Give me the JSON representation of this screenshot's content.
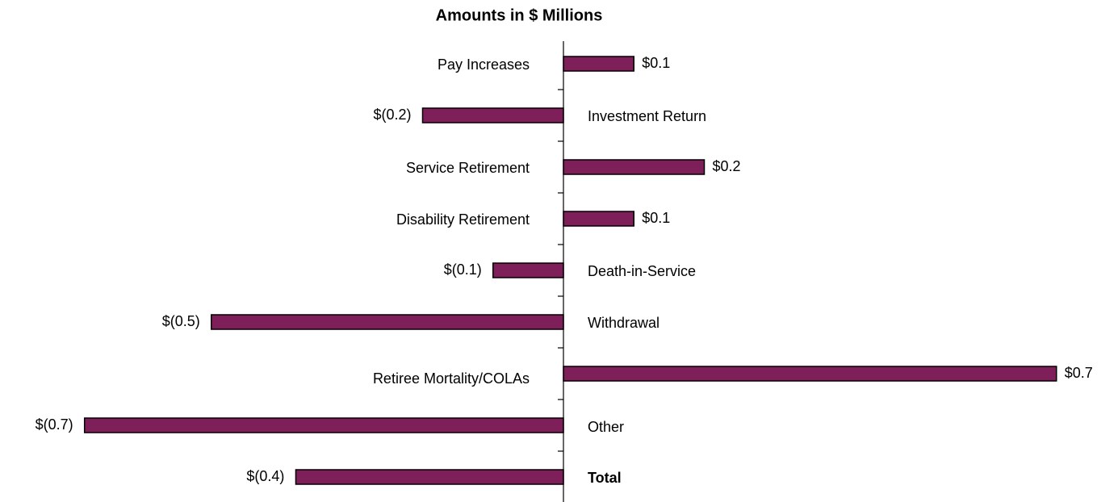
{
  "chart_data": {
    "type": "bar",
    "orientation": "horizontal",
    "title": "Amounts in $ Millions",
    "categories": [
      "Pay Increases",
      "Investment Return",
      "Service Retirement",
      "Disability Retirement",
      "Death-in-Service",
      "Withdrawal",
      "Retiree Mortality/COLAs",
      "Other",
      "Total"
    ],
    "values": [
      0.1,
      -0.2,
      0.2,
      0.1,
      -0.1,
      -0.5,
      0.7,
      -0.68,
      -0.38
    ],
    "value_labels": [
      "$0.1",
      "$(0.2)",
      "$0.2",
      "$0.1",
      "$(0.1)",
      "$(0.5)",
      "$0.7",
      "$(0.7)",
      "$(0.4)"
    ],
    "color": "#7f1f5a",
    "xlim": [
      -0.8,
      0.8
    ]
  }
}
